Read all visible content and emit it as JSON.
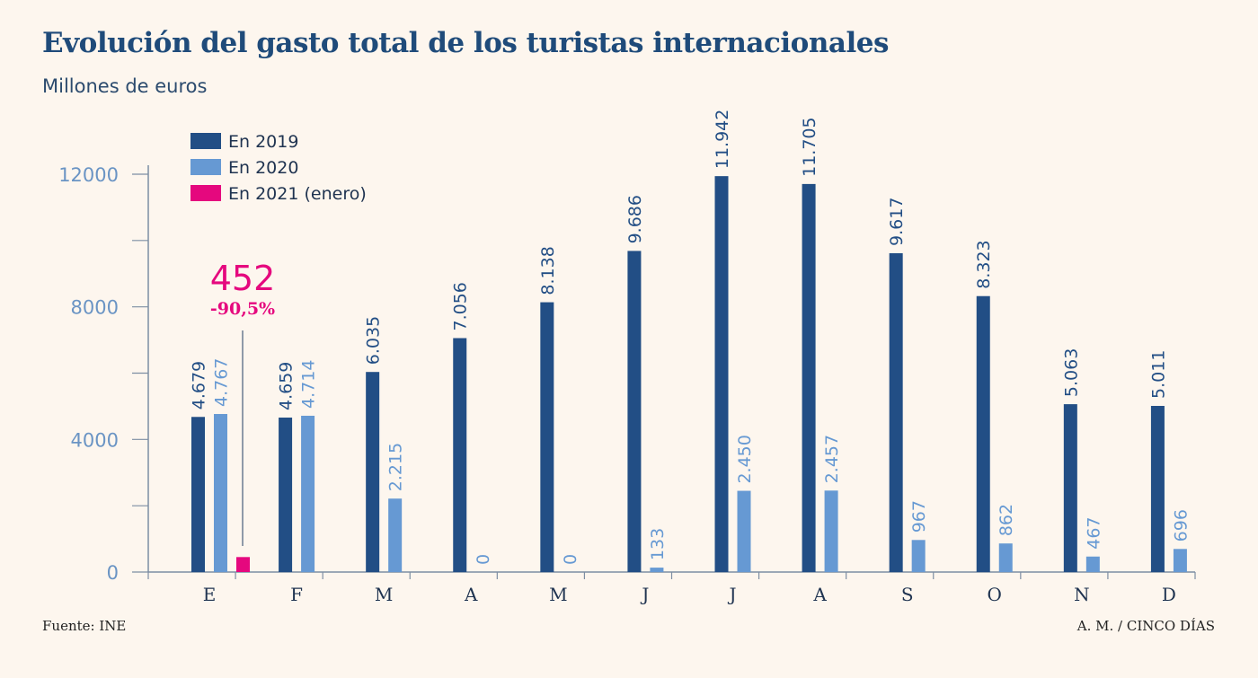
{
  "title": "Evolución del gasto total de los turistas internacionales",
  "subtitle": "Millones de euros",
  "source": "Fuente: INE",
  "credit": "A. M. / CINCO DÍAS",
  "colors": {
    "s2019": "#224e85",
    "s2020": "#6699d3",
    "s2021": "#e5087e",
    "axis": "#7d8ea3",
    "ytick": "#6a94c4"
  },
  "chart_data": {
    "type": "bar",
    "categories": [
      "E",
      "F",
      "M",
      "A",
      "M",
      "J",
      "J",
      "A",
      "S",
      "O",
      "N",
      "D"
    ],
    "series": [
      {
        "name": "En 2019",
        "values": [
          4679,
          4659,
          6035,
          7056,
          8138,
          9686,
          11942,
          11705,
          9617,
          8323,
          5063,
          5011
        ],
        "labels": [
          "4.679",
          "4.659",
          "6.035",
          "7.056",
          "8.138",
          "9.686",
          "11.942",
          "11.705",
          "9.617",
          "8.323",
          "5.063",
          "5.011"
        ]
      },
      {
        "name": "En 2020",
        "values": [
          4767,
          4714,
          2215,
          0,
          0,
          133,
          2450,
          2457,
          967,
          862,
          467,
          696
        ],
        "labels": [
          "4.767",
          "4.714",
          "2.215",
          "0",
          "0",
          "133",
          "2.450",
          "2.457",
          "967",
          "862",
          "467",
          "696"
        ]
      },
      {
        "name": "En 2021 (enero)",
        "values": [
          452,
          null,
          null,
          null,
          null,
          null,
          null,
          null,
          null,
          null,
          null,
          null
        ],
        "labels": [
          "",
          "",
          "",
          "",
          "",
          "",
          "",
          "",
          "",
          "",
          "",
          ""
        ]
      }
    ],
    "yticks": [
      0,
      4000,
      8000,
      12000
    ],
    "ylim": [
      0,
      12000
    ],
    "legend_position": "top-left",
    "annotation": {
      "value": "452",
      "change": "-90,5%"
    },
    "grid": false
  }
}
